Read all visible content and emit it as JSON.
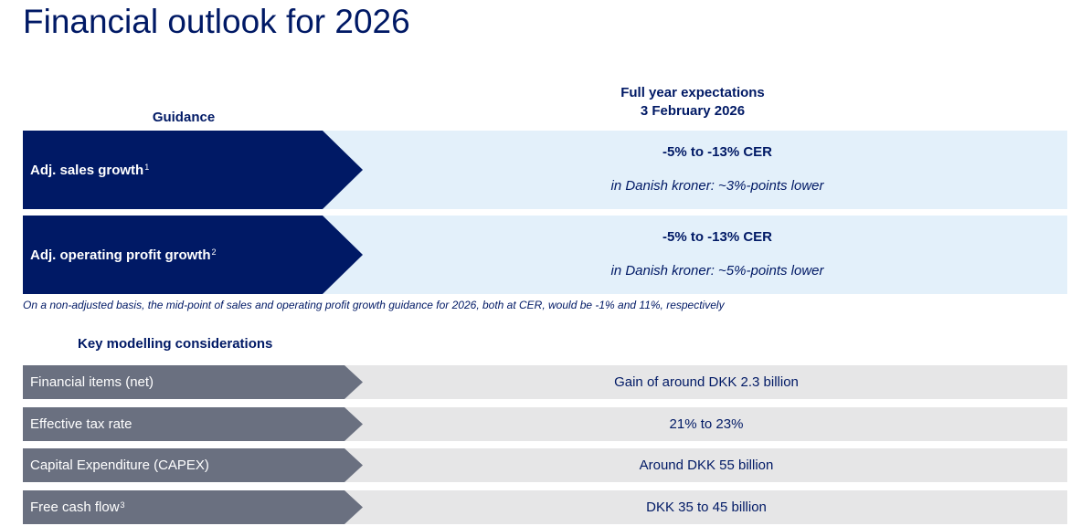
{
  "title": "Financial outlook for 2026",
  "headers": {
    "guidance": "Guidance",
    "expectations_line1": "Full year expectations",
    "expectations_line2": "3 February 2026"
  },
  "guidance_rows": [
    {
      "label": "Adj. sales growth",
      "footnote_ref": "1",
      "value": "-5% to -13% CER",
      "note": "in Danish kroner: ~3%-points lower"
    },
    {
      "label": "Adj. operating profit growth",
      "footnote_ref": "2",
      "value": "-5% to -13% CER",
      "note": "in Danish kroner: ~5%-points lower"
    }
  ],
  "footnote": "On a non-adjusted basis, the mid-point of sales and operating profit growth guidance for 2026, both at CER, would be -1% and 11%, respectively",
  "modelling_header": "Key modelling considerations",
  "modelling_rows": [
    {
      "label": "Financial items (net)",
      "footnote_ref": "",
      "value": "Gain of around DKK 2.3 billion"
    },
    {
      "label": "Effective tax rate",
      "footnote_ref": "",
      "value": "21% to 23%"
    },
    {
      "label": "Capital Expenditure (CAPEX)",
      "footnote_ref": "",
      "value": "Around DKK 55 billion"
    },
    {
      "label": "Free cash flow",
      "footnote_ref": "3",
      "value": "DKK 35 to 45 billion"
    }
  ],
  "colors": {
    "navy": "#001965",
    "light_blue": "#e3f0fa",
    "slate": "#6a7080",
    "light_gray": "#e6e6e7"
  }
}
